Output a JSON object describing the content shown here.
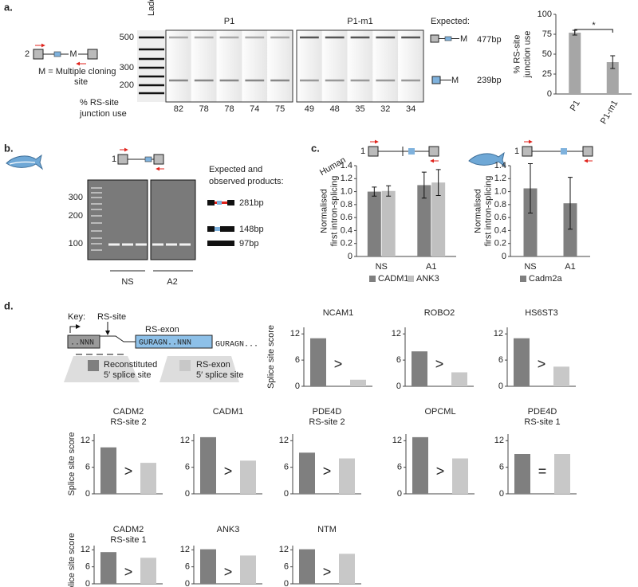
{
  "panel_labels": [
    "a.",
    "b.",
    "c.",
    "d."
  ],
  "panel_a": {
    "construct_number": "2",
    "construct_m": "M",
    "mcs_note": [
      "M = Multiple cloning",
      "site"
    ],
    "ladder": "Ladder",
    "ladder_sizes": [
      500,
      300,
      200
    ],
    "gel_groups": [
      {
        "name": "P1",
        "junction_use": [
          82,
          78,
          78,
          74,
          75
        ]
      },
      {
        "name": "P1-m1",
        "junction_use": [
          49,
          48,
          35,
          32,
          34
        ]
      }
    ],
    "junction_label": [
      "% RS-site",
      "junction use"
    ],
    "expected": "Expected:",
    "products": [
      {
        "m": "M",
        "size": "477bp"
      },
      {
        "m": "M",
        "size": "239bp"
      }
    ]
  },
  "panel_b": {
    "construct_number": "1",
    "ladder_sizes": [
      300,
      200,
      100
    ],
    "groups": [
      "NS",
      "A2"
    ],
    "products_title": [
      "Expected and",
      "observed products:"
    ],
    "products": [
      "281bp",
      "148bp",
      "97bp"
    ]
  },
  "panel_c": {
    "species": "Human",
    "construct_numbers": [
      "1",
      "1"
    ]
  },
  "panel_d": {
    "key": "Key:",
    "rs_site": "RS-site",
    "rs_exon": "RS-exon",
    "exon_seq": "..NNN",
    "rs_exon_seq": "GURAGN..NNN",
    "intron_seq": "GURAGN...",
    "legend": [
      [
        "Reconstituted",
        "5′ splice site"
      ],
      [
        "RS-exon",
        "5′ splice site"
      ]
    ]
  },
  "chart_data": [
    {
      "type": "bar",
      "ylabel": [
        "% RS-site",
        "junction use"
      ],
      "categories": [
        "P1",
        "P1-m1"
      ],
      "values": [
        77,
        40
      ],
      "errors": [
        3,
        8
      ],
      "color": "#a6a6a6",
      "ylim": [
        0,
        100
      ],
      "yticks": [
        0,
        25,
        50,
        75,
        100
      ],
      "annotation": "*"
    },
    {
      "type": "bar",
      "ylabel": [
        "Normalised",
        "first intron-splicing"
      ],
      "categories": [
        "NS",
        "A1"
      ],
      "series": [
        {
          "name": "CADM1",
          "color": "#7f7f7f",
          "values": [
            1.0,
            1.1
          ],
          "errors": [
            0.07,
            0.2
          ]
        },
        {
          "name": "ANK3",
          "color": "#c0c0c0",
          "values": [
            1.01,
            1.14
          ],
          "errors": [
            0.08,
            0.2
          ]
        }
      ],
      "ylim": [
        0,
        1.4
      ],
      "yticks": [
        0,
        0.2,
        0.4,
        0.6,
        0.8,
        {
          "value": 1,
          "label": "1.0"
        },
        1.2,
        1.4
      ],
      "legend": true
    },
    {
      "type": "bar",
      "ylabel": [
        "Normalised",
        "first intron-splicing"
      ],
      "categories": [
        "NS",
        "A1"
      ],
      "series": [
        {
          "name": "Cadm2a",
          "color": "#7f7f7f",
          "values": [
            1.05,
            0.82
          ],
          "errors": [
            0.38,
            0.4
          ]
        }
      ],
      "ylim": [
        0,
        1.4
      ],
      "yticks": [
        0,
        0.2,
        0.4,
        0.6,
        0.8,
        {
          "value": 1,
          "label": "1.0"
        },
        1.2,
        1.4
      ],
      "legend": true
    },
    {
      "type": "bar",
      "title": [
        "NCAM1"
      ],
      "ylabel": [
        "Splice site score"
      ],
      "values": [
        11,
        1.5
      ],
      "colors": [
        "#7f7f7f",
        "#c8c8c8"
      ],
      "comparator": ">",
      "ylim": [
        0,
        13.5
      ],
      "yticks": [
        0,
        6,
        12
      ]
    },
    {
      "type": "bar",
      "title": [
        "ROBO2"
      ],
      "values": [
        8,
        3.2
      ],
      "colors": [
        "#7f7f7f",
        "#c8c8c8"
      ],
      "comparator": ">",
      "ylim": [
        0,
        13.5
      ],
      "yticks": [
        0,
        6,
        12
      ]
    },
    {
      "type": "bar",
      "title": [
        "HS6ST3"
      ],
      "values": [
        11,
        4.5
      ],
      "colors": [
        "#7f7f7f",
        "#c8c8c8"
      ],
      "comparator": ">",
      "ylim": [
        0,
        13.5
      ],
      "yticks": [
        0,
        6,
        12
      ]
    },
    {
      "type": "bar",
      "title": [
        "CADM2",
        "RS-site 2"
      ],
      "ylabel": [
        "Splice site score"
      ],
      "values": [
        10.5,
        7
      ],
      "colors": [
        "#7f7f7f",
        "#c8c8c8"
      ],
      "comparator": ">",
      "ylim": [
        0,
        13.5
      ],
      "yticks": [
        0,
        6,
        12
      ]
    },
    {
      "type": "bar",
      "title": [
        "CADM1"
      ],
      "values": [
        12.8,
        7.5
      ],
      "colors": [
        "#7f7f7f",
        "#c8c8c8"
      ],
      "comparator": ">",
      "ylim": [
        0,
        13.5
      ],
      "yticks": [
        0,
        6,
        12
      ]
    },
    {
      "type": "bar",
      "title": [
        "PDE4D",
        "RS-site 2"
      ],
      "values": [
        9.3,
        8
      ],
      "colors": [
        "#7f7f7f",
        "#c8c8c8"
      ],
      "comparator": ">",
      "ylim": [
        0,
        13.5
      ],
      "yticks": [
        0,
        6,
        12
      ]
    },
    {
      "type": "bar",
      "title": [
        "OPCML"
      ],
      "values": [
        12.8,
        8
      ],
      "colors": [
        "#7f7f7f",
        "#c8c8c8"
      ],
      "comparator": ">",
      "ylim": [
        0,
        13.5
      ],
      "yticks": [
        0,
        6,
        12
      ]
    },
    {
      "type": "bar",
      "title": [
        "PDE4D",
        "RS-site 1"
      ],
      "values": [
        9,
        9
      ],
      "colors": [
        "#7f7f7f",
        "#c8c8c8"
      ],
      "comparator": "=",
      "ylim": [
        0,
        13.5
      ],
      "yticks": [
        0,
        6,
        12
      ]
    },
    {
      "type": "bar",
      "title": [
        "CADM2",
        "RS-site 1"
      ],
      "ylabel": [
        "Splice site score"
      ],
      "values": [
        11.2,
        9.2
      ],
      "colors": [
        "#7f7f7f",
        "#c8c8c8"
      ],
      "comparator": ">",
      "ylim": [
        0,
        13.5
      ],
      "yticks": [
        0,
        6,
        12
      ]
    },
    {
      "type": "bar",
      "title": [
        "ANK3"
      ],
      "values": [
        12.2,
        10
      ],
      "colors": [
        "#7f7f7f",
        "#c8c8c8"
      ],
      "comparator": ">",
      "ylim": [
        0,
        13.5
      ],
      "yticks": [
        0,
        6,
        12
      ]
    },
    {
      "type": "bar",
      "title": [
        "NTM"
      ],
      "values": [
        12.2,
        10.6
      ],
      "colors": [
        "#7f7f7f",
        "#c8c8c8"
      ],
      "comparator": ">",
      "ylim": [
        0,
        13.5
      ],
      "yticks": [
        0,
        6,
        12
      ]
    }
  ]
}
